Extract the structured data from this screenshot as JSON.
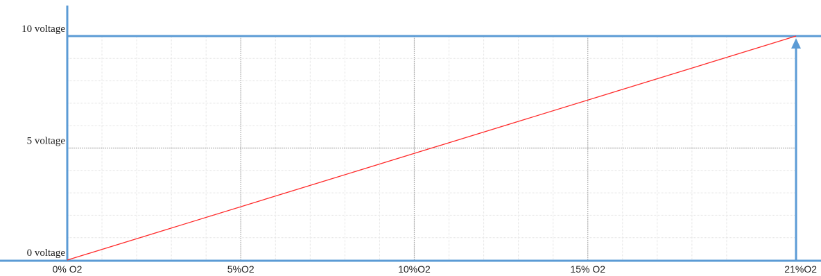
{
  "chart_data": {
    "type": "line",
    "title": "",
    "xlabel": "",
    "ylabel": "",
    "x_ticks": [
      {
        "value": 0,
        "label": "0% O2"
      },
      {
        "value": 5,
        "label": "5%O2"
      },
      {
        "value": 10,
        "label": "10%O2"
      },
      {
        "value": 15,
        "label": "15% O2"
      },
      {
        "value": 21,
        "label": "21%O2"
      }
    ],
    "y_ticks": [
      {
        "value": 0,
        "label": "0 voltage"
      },
      {
        "value": 5,
        "label": "5 voltage"
      },
      {
        "value": 10,
        "label": "10 voltage"
      }
    ],
    "xlim": [
      0,
      21
    ],
    "ylim": [
      0,
      10
    ],
    "grid": true,
    "series": [
      {
        "x": [
          0,
          21
        ],
        "y": [
          0,
          10
        ],
        "color": "#ff2a2a"
      }
    ],
    "colors": {
      "axis": "#5b9bd5",
      "grid_major": "#b0b0b0",
      "grid_minor": "#e2e2e2",
      "line": "#ff2a2a"
    }
  }
}
